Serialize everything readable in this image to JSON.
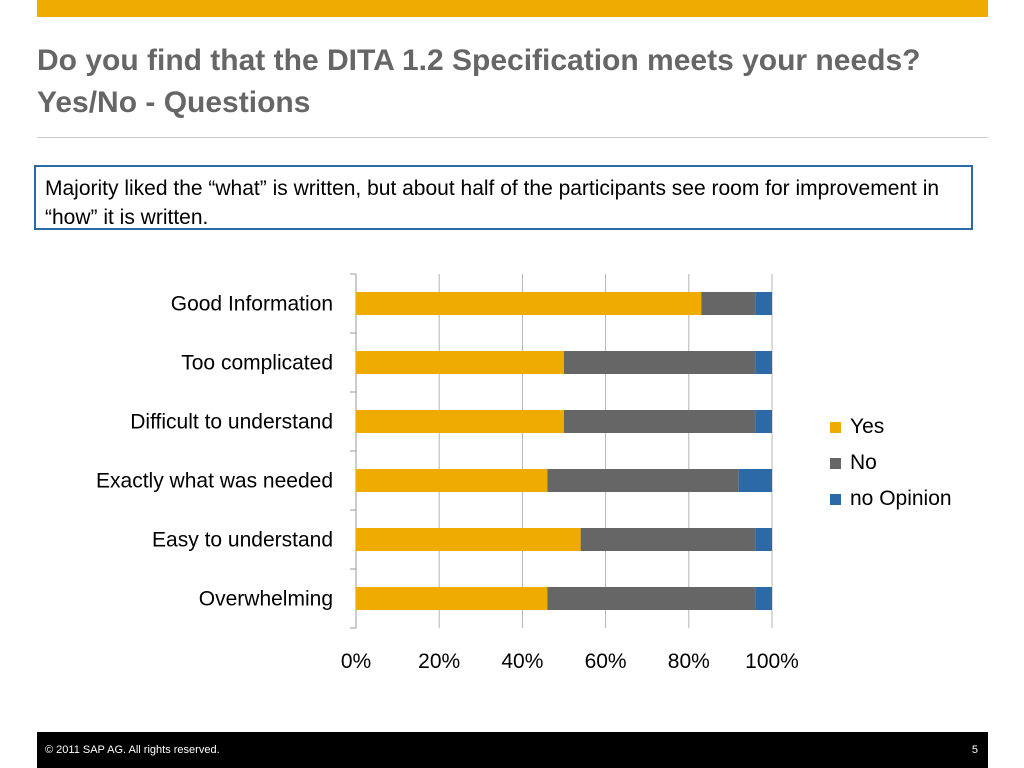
{
  "slide": {
    "title": "Do you find that the DITA 1.2 Specification meets your needs? Yes/No - Questions",
    "callout": "Majority liked the “what” is written, but about half of the participants see room for improvement in “how” it is written.",
    "footer": {
      "copyright": "© 2011 SAP AG. All rights reserved.",
      "page_number": "5"
    },
    "colors": {
      "accent_bar": "#f0ab00",
      "title": "#666666",
      "callout_border": "#2b6aa6"
    }
  },
  "chart_data": {
    "type": "bar",
    "orientation": "horizontal",
    "stacked": "percent",
    "categories": [
      "Good Information",
      "Too complicated",
      "Difficult to understand",
      "Exactly what was needed",
      "Easy to understand",
      "Overwhelming"
    ],
    "series": [
      {
        "name": "Yes",
        "color": "#f0ab00",
        "values": [
          83,
          50,
          50,
          46,
          54,
          46
        ]
      },
      {
        "name": "No",
        "color": "#666666",
        "values": [
          13,
          46,
          46,
          46,
          42,
          50
        ]
      },
      {
        "name": "no Opinion",
        "color": "#2b6aa6",
        "values": [
          4,
          4,
          4,
          8,
          4,
          4
        ]
      }
    ],
    "xticks": [
      "0%",
      "20%",
      "40%",
      "60%",
      "80%",
      "100%"
    ],
    "xlim": [
      0,
      100
    ],
    "grid": true,
    "legend": "right"
  }
}
